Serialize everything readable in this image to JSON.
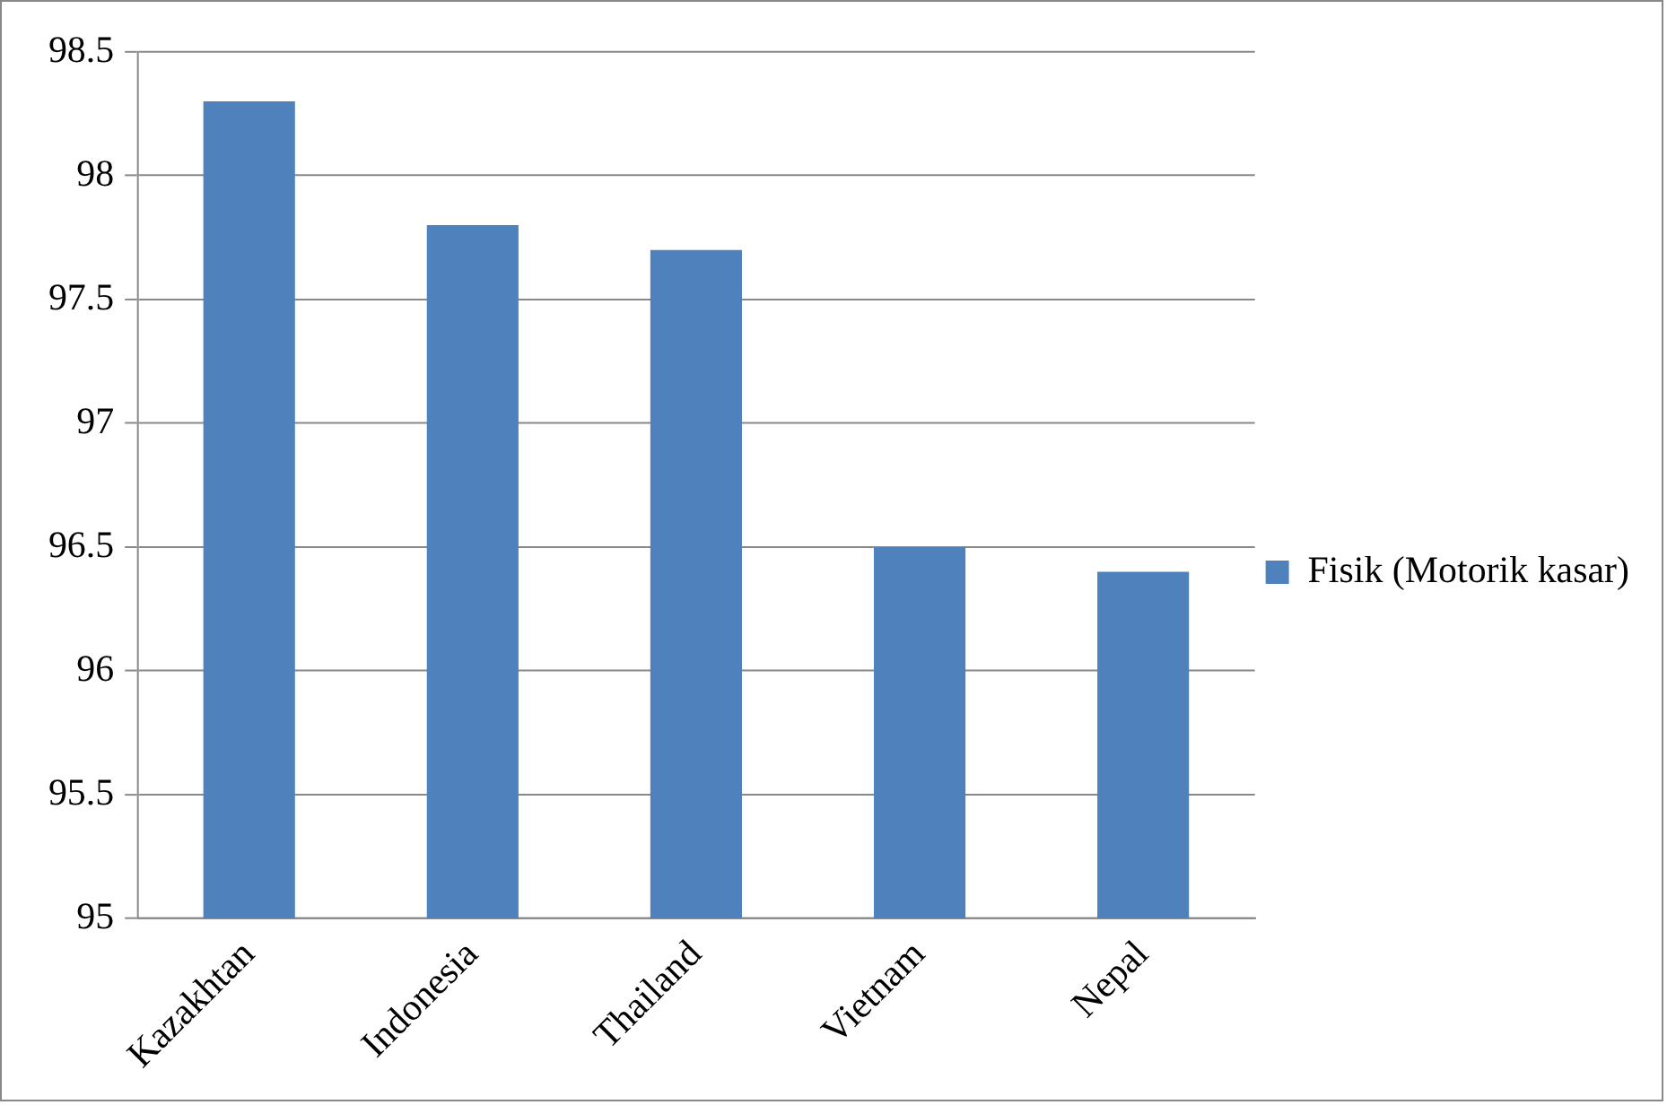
{
  "chart_data": {
    "type": "bar",
    "categories": [
      "Kazakhtan",
      "Indonesia",
      "Thailand",
      "Vietnam",
      "Nepal"
    ],
    "series": [
      {
        "name": "Fisik (Motorik kasar)",
        "color": "#4f81bd",
        "values": [
          98.3,
          97.8,
          97.7,
          96.5,
          96.4
        ]
      }
    ],
    "ylim": [
      95,
      98.5
    ],
    "yticks": [
      95,
      95.5,
      96,
      96.5,
      97,
      97.5,
      98,
      98.5
    ],
    "grid": "y",
    "legend": "right"
  }
}
